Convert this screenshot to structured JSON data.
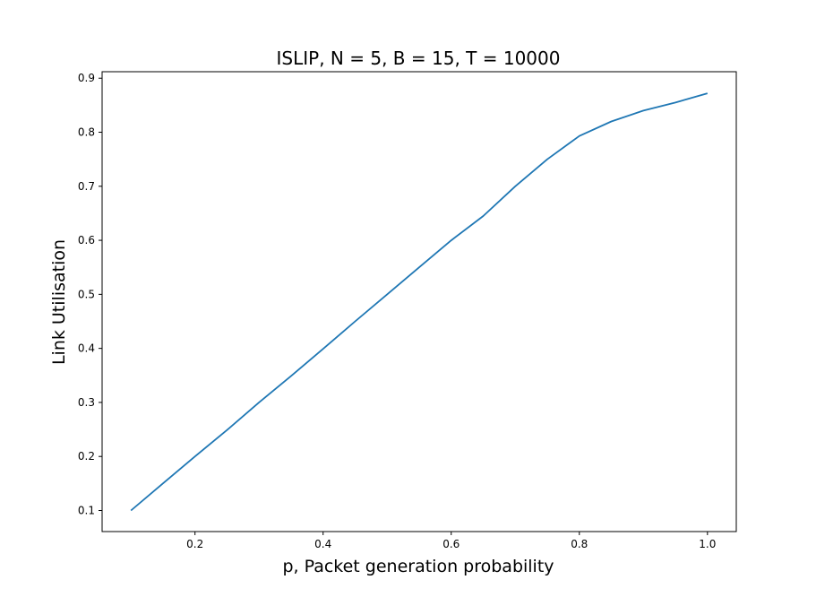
{
  "chart_data": {
    "type": "line",
    "title": "ISLIP, N = 5, B = 15, T = 10000",
    "xlabel": "p, Packet generation probability",
    "ylabel": "Link Utilisation",
    "xlim": [
      0.055,
      1.045
    ],
    "ylim": [
      0.061,
      0.912
    ],
    "xticks": [
      0.2,
      0.4,
      0.6,
      0.8,
      1.0
    ],
    "xtick_labels": [
      "0.2",
      "0.4",
      "0.6",
      "0.8",
      "1.0"
    ],
    "yticks": [
      0.1,
      0.2,
      0.3,
      0.4,
      0.5,
      0.6,
      0.7,
      0.8,
      0.9
    ],
    "ytick_labels": [
      "0.1",
      "0.2",
      "0.3",
      "0.4",
      "0.5",
      "0.6",
      "0.7",
      "0.8",
      "0.9"
    ],
    "grid": false,
    "series": [
      {
        "color": "#1f77b4",
        "x": [
          0.1,
          0.15,
          0.2,
          0.25,
          0.3,
          0.35,
          0.4,
          0.45,
          0.5,
          0.55,
          0.6,
          0.65,
          0.7,
          0.75,
          0.8,
          0.85,
          0.9,
          0.95,
          1.0
        ],
        "y": [
          0.1,
          0.15,
          0.2,
          0.249,
          0.3,
          0.349,
          0.399,
          0.45,
          0.5,
          0.55,
          0.6,
          0.645,
          0.7,
          0.75,
          0.793,
          0.82,
          0.84,
          0.855,
          0.872
        ]
      }
    ]
  }
}
